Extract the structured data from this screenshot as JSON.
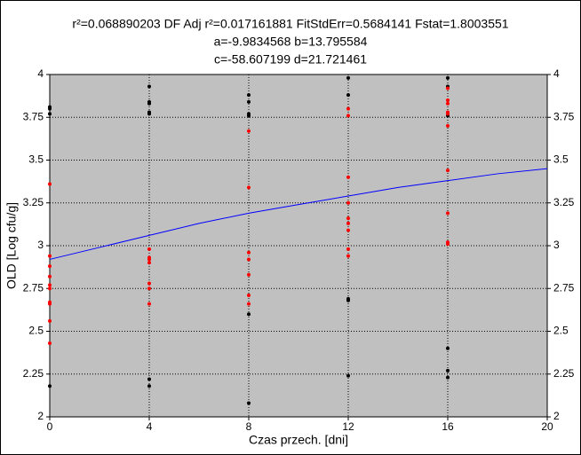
{
  "chart_data": {
    "type": "scatter",
    "title": [
      "r²=0.068890203  DF Adj r²=0.017161881  FitStdErr=0.5684141  Fstat=1.8003551",
      "a=-9.9834568 b=13.795584",
      "c=-58.607199 d=21.721461"
    ],
    "x_label": "Czas przech. [dni]",
    "y_label": "OLD [Log cfu/g]",
    "xlim": [
      0,
      20
    ],
    "xticks": [
      0,
      4,
      8,
      12,
      16,
      20
    ],
    "ylim": [
      2,
      4
    ],
    "yticks": [
      2,
      2.25,
      2.5,
      2.75,
      3,
      3.25,
      3.5,
      3.75,
      4
    ],
    "grid": true,
    "background": "#c0c0c0",
    "series": [
      {
        "mark": "point",
        "color": "#000000",
        "x": [
          0,
          0,
          0,
          0,
          4,
          4,
          4,
          4,
          4,
          4,
          4,
          8,
          8,
          8,
          8,
          8,
          8,
          12,
          12,
          12,
          12,
          12,
          16,
          16,
          16,
          16,
          16,
          16
        ],
        "values": [
          3.81,
          3.8,
          3.77,
          2.18,
          3.93,
          3.84,
          3.83,
          3.78,
          3.77,
          2.22,
          2.18,
          3.88,
          3.84,
          3.77,
          3.76,
          2.6,
          2.08,
          3.98,
          3.88,
          2.69,
          2.68,
          2.24,
          3.98,
          3.93,
          3.76,
          2.4,
          2.27,
          2.23
        ]
      },
      {
        "mark": "point",
        "color": "#ff0000",
        "x": [
          0,
          0,
          0,
          0,
          0,
          0,
          0,
          0,
          0,
          0,
          4,
          4,
          4,
          4,
          4,
          4,
          4,
          8,
          8,
          8,
          8,
          8,
          8,
          8,
          12,
          12,
          12,
          12,
          12,
          12,
          12,
          12,
          12,
          16,
          16,
          16,
          16,
          16,
          16,
          16,
          16,
          16,
          16
        ],
        "values": [
          3.36,
          2.94,
          2.88,
          2.82,
          2.77,
          2.75,
          2.67,
          2.66,
          2.56,
          2.43,
          2.98,
          2.93,
          2.92,
          2.9,
          2.78,
          2.75,
          2.66,
          3.67,
          3.34,
          2.96,
          2.92,
          2.83,
          2.71,
          2.66,
          3.8,
          3.76,
          3.4,
          3.25,
          3.16,
          3.13,
          3.09,
          2.98,
          2.94,
          3.92,
          3.85,
          3.83,
          3.78,
          3.77,
          3.7,
          3.44,
          3.19,
          3.02,
          3.01
        ]
      },
      {
        "mark": "line",
        "color": "#0000ff",
        "x": [
          0,
          2,
          4,
          6,
          8,
          10,
          12,
          14,
          16,
          18,
          20
        ],
        "values": [
          2.92,
          2.99,
          3.06,
          3.13,
          3.19,
          3.24,
          3.29,
          3.34,
          3.38,
          3.42,
          3.45
        ]
      }
    ]
  }
}
